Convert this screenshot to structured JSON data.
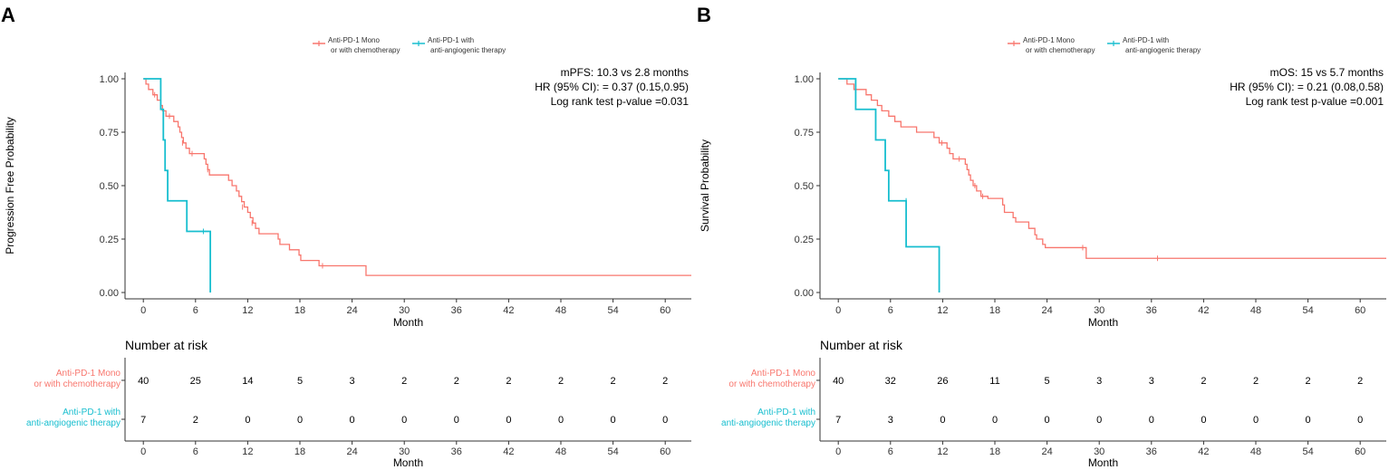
{
  "colors": {
    "group1": "#F8766D",
    "group2": "#17BECF",
    "axis": "#333333"
  },
  "chart_data": [
    {
      "type": "line",
      "panel_label": "A",
      "title": "",
      "xlabel": "Month",
      "ylabel": "Progression Free Probability",
      "xlim": [
        -2,
        63
      ],
      "ylim": [
        0,
        1
      ],
      "x_ticks": [
        0,
        6,
        12,
        18,
        24,
        30,
        36,
        42,
        48,
        54,
        60
      ],
      "y_ticks": [
        0,
        0.25,
        0.5,
        0.75,
        1
      ],
      "y_tick_labels": [
        "0.00",
        "0.25",
        "0.50",
        "0.75",
        "1.00"
      ],
      "annotations": [
        "mPFS: 10.3 vs 2.8 months",
        "HR (95% CI): = 0.37 (0.15,0.95)",
        "Log rank test p-value =0.031"
      ],
      "series": [
        {
          "name": "Anti-PD-1 Mono or with chemotherapy",
          "legend": [
            "Anti-PD-1 Mono",
            "or with chemotherapy"
          ],
          "risk_label": [
            "Anti-PD-1 Mono",
            "or with chemotherapy"
          ],
          "steps": [
            [
              0,
              1.0
            ],
            [
              0.3,
              0.975
            ],
            [
              0.6,
              0.95
            ],
            [
              1.1,
              0.925
            ],
            [
              1.6,
              0.9
            ],
            [
              2.0,
              0.875
            ],
            [
              2.2,
              0.85
            ],
            [
              2.6,
              0.825
            ],
            [
              3.5,
              0.8
            ],
            [
              4.0,
              0.775
            ],
            [
              4.2,
              0.75
            ],
            [
              4.4,
              0.725
            ],
            [
              4.6,
              0.7
            ],
            [
              4.9,
              0.675
            ],
            [
              5.3,
              0.65
            ],
            [
              7.0,
              0.625
            ],
            [
              7.2,
              0.6
            ],
            [
              7.4,
              0.575
            ],
            [
              7.6,
              0.55
            ],
            [
              9.8,
              0.525
            ],
            [
              10.2,
              0.5
            ],
            [
              10.7,
              0.475
            ],
            [
              11.0,
              0.45
            ],
            [
              11.3,
              0.425
            ],
            [
              11.6,
              0.4
            ],
            [
              12.0,
              0.375
            ],
            [
              12.3,
              0.35
            ],
            [
              12.6,
              0.325
            ],
            [
              12.9,
              0.3
            ],
            [
              13.3,
              0.275
            ],
            [
              15.5,
              0.25
            ],
            [
              15.7,
              0.225
            ],
            [
              16.8,
              0.2
            ],
            [
              17.9,
              0.175
            ],
            [
              18.1,
              0.15
            ],
            [
              20.2,
              0.125
            ],
            [
              25.6,
              0.08
            ],
            [
              63,
              0.08
            ]
          ],
          "censor": [
            [
              1.3,
              0.925
            ],
            [
              3.0,
              0.825
            ],
            [
              4.5,
              0.7
            ],
            [
              5.6,
              0.65
            ],
            [
              7.4,
              0.575
            ],
            [
              11.4,
              0.4
            ],
            [
              12.5,
              0.325
            ],
            [
              20.6,
              0.125
            ]
          ],
          "at_risk": [
            40,
            25,
            14,
            5,
            3,
            2,
            2,
            2,
            2,
            2,
            2
          ]
        },
        {
          "name": "Anti-PD-1 with anti-angiogenic therapy",
          "legend": [
            "Anti-PD-1 with",
            "anti-angiogenic therapy"
          ],
          "risk_label": [
            "Anti-PD-1 with",
            "anti-angiogenic therapy"
          ],
          "steps": [
            [
              0,
              1.0
            ],
            [
              2.0,
              0.857
            ],
            [
              2.3,
              0.714
            ],
            [
              2.5,
              0.571
            ],
            [
              2.8,
              0.429
            ],
            [
              5.0,
              0.286
            ],
            [
              7.7,
              0.0
            ]
          ],
          "censor": [
            [
              6.9,
              0.286
            ]
          ],
          "at_risk": [
            7,
            2,
            0,
            0,
            0,
            0,
            0,
            0,
            0,
            0,
            0
          ]
        }
      ],
      "risk_table": {
        "title": "Number at risk",
        "xlabel": "Month",
        "x": [
          0,
          6,
          12,
          18,
          24,
          30,
          36,
          42,
          48,
          54,
          60
        ]
      }
    },
    {
      "type": "line",
      "panel_label": "B",
      "title": "",
      "xlabel": "Month",
      "ylabel": "Survival Probability",
      "xlim": [
        -2,
        63
      ],
      "ylim": [
        0,
        1
      ],
      "x_ticks": [
        0,
        6,
        12,
        18,
        24,
        30,
        36,
        42,
        48,
        54,
        60
      ],
      "y_ticks": [
        0,
        0.25,
        0.5,
        0.75,
        1
      ],
      "y_tick_labels": [
        "0.00",
        "0.25",
        "0.50",
        "0.75",
        "1.00"
      ],
      "annotations": [
        "mOS: 15 vs 5.7 months",
        "HR (95% CI): = 0.21 (0.08,0.58)",
        "Log rank test p-value =0.001"
      ],
      "series": [
        {
          "name": "Anti-PD-1 Mono or with chemotherapy",
          "legend": [
            "Anti-PD-1 Mono",
            "or with chemotherapy"
          ],
          "risk_label": [
            "Anti-PD-1 Mono",
            "or with chemotherapy"
          ],
          "steps": [
            [
              0,
              1.0
            ],
            [
              1.0,
              0.975
            ],
            [
              1.8,
              0.95
            ],
            [
              3.2,
              0.925
            ],
            [
              3.8,
              0.9
            ],
            [
              4.5,
              0.875
            ],
            [
              5.0,
              0.85
            ],
            [
              5.8,
              0.825
            ],
            [
              6.5,
              0.8
            ],
            [
              7.2,
              0.775
            ],
            [
              9.0,
              0.75
            ],
            [
              11.0,
              0.725
            ],
            [
              11.6,
              0.7
            ],
            [
              12.5,
              0.675
            ],
            [
              12.8,
              0.65
            ],
            [
              13.2,
              0.625
            ],
            [
              14.6,
              0.6
            ],
            [
              14.8,
              0.575
            ],
            [
              15.0,
              0.55
            ],
            [
              15.2,
              0.525
            ],
            [
              15.5,
              0.5
            ],
            [
              15.9,
              0.475
            ],
            [
              16.4,
              0.45
            ],
            [
              17.2,
              0.44
            ],
            [
              18.9,
              0.41
            ],
            [
              19.1,
              0.375
            ],
            [
              20.1,
              0.35
            ],
            [
              20.4,
              0.33
            ],
            [
              21.9,
              0.3
            ],
            [
              22.6,
              0.27
            ],
            [
              22.8,
              0.25
            ],
            [
              23.5,
              0.225
            ],
            [
              23.8,
              0.21
            ],
            [
              28.5,
              0.16
            ],
            [
              63,
              0.16
            ]
          ],
          "censor": [
            [
              11.9,
              0.7
            ],
            [
              13.9,
              0.625
            ],
            [
              15.7,
              0.5
            ],
            [
              16.6,
              0.45
            ],
            [
              28.1,
              0.21
            ],
            [
              36.7,
              0.16
            ]
          ],
          "at_risk": [
            40,
            32,
            26,
            11,
            5,
            3,
            3,
            2,
            2,
            2,
            2
          ]
        },
        {
          "name": "Anti-PD-1 with anti-angiogenic therapy",
          "legend": [
            "Anti-PD-1 with",
            "anti-angiogenic therapy"
          ],
          "risk_label": [
            "Anti-PD-1 with",
            "anti-angiogenic therapy"
          ],
          "steps": [
            [
              0,
              1.0
            ],
            [
              2.0,
              0.857
            ],
            [
              4.3,
              0.714
            ],
            [
              5.4,
              0.571
            ],
            [
              5.8,
              0.429
            ],
            [
              7.8,
              0.214
            ],
            [
              11.6,
              0.0
            ]
          ],
          "censor": [
            [
              7.8,
              0.429
            ]
          ],
          "at_risk": [
            7,
            3,
            0,
            0,
            0,
            0,
            0,
            0,
            0,
            0,
            0
          ]
        }
      ],
      "risk_table": {
        "title": "Number at risk",
        "xlabel": "Month",
        "x": [
          0,
          6,
          12,
          18,
          24,
          30,
          36,
          42,
          48,
          54,
          60
        ]
      }
    }
  ]
}
